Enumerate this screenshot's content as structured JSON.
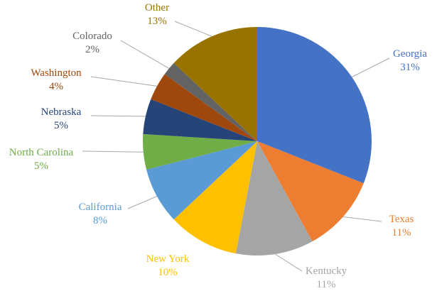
{
  "chart_data": {
    "type": "pie",
    "slices": [
      {
        "label": "Georgia",
        "value": 31,
        "pct_label": "31%",
        "color": "#4472C4"
      },
      {
        "label": "Texas",
        "value": 11,
        "pct_label": "11%",
        "color": "#ED7D31"
      },
      {
        "label": "Kentucky",
        "value": 11,
        "pct_label": "11%",
        "color": "#A5A5A5"
      },
      {
        "label": "New York",
        "value": 10,
        "pct_label": "10%",
        "color": "#FFC000"
      },
      {
        "label": "California",
        "value": 8,
        "pct_label": "8%",
        "color": "#5B9BD5"
      },
      {
        "label": "North Carolina",
        "value": 5,
        "pct_label": "5%",
        "color": "#70AD47"
      },
      {
        "label": "Nebraska",
        "value": 5,
        "pct_label": "5%",
        "color": "#264478"
      },
      {
        "label": "Washington",
        "value": 4,
        "pct_label": "4%",
        "color": "#9E480E"
      },
      {
        "label": "Colorado",
        "value": 2,
        "pct_label": "2%",
        "color": "#636363"
      },
      {
        "label": "Other",
        "value": 13,
        "pct_label": "13%",
        "color": "#997300"
      }
    ],
    "start": "12 o'clock",
    "direction": "clockwise",
    "legend": "none",
    "data_labels": "outside with leader lines"
  }
}
